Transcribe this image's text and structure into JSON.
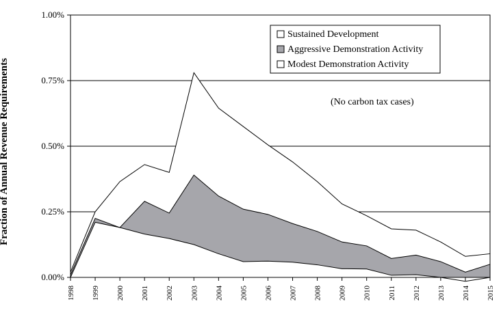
{
  "chart_data": {
    "type": "area",
    "ylabel": "Fraction of Annual Revenue Requirements",
    "annotation": "(No carbon tax cases)",
    "ylim": [
      0,
      1.0
    ],
    "yticks": [
      {
        "value": 0.0,
        "label": "0.00%"
      },
      {
        "value": 0.25,
        "label": "0.25%"
      },
      {
        "value": 0.5,
        "label": "0.50%"
      },
      {
        "value": 0.75,
        "label": "0.75%"
      },
      {
        "value": 1.0,
        "label": "1.00%"
      }
    ],
    "x": [
      "1998",
      "1999",
      "2000",
      "2001",
      "2002",
      "2003",
      "2004",
      "2005",
      "2006",
      "2007",
      "2008",
      "2009",
      "2010",
      "2011",
      "2012",
      "2013",
      "2014",
      "2015"
    ],
    "grid": "horizontal",
    "legend_position": "top-right",
    "series": [
      {
        "name": "Sustained Development",
        "fill": "#ffffff",
        "values": [
          0.0,
          0.21,
          0.19,
          0.165,
          0.148,
          0.125,
          0.09,
          0.06,
          0.062,
          0.058,
          0.048,
          0.033,
          0.032,
          0.008,
          0.01,
          0.0,
          -0.015,
          0.0
        ]
      },
      {
        "name": "Aggressive Demonstration Activity",
        "fill": "#a6a6ab",
        "values": [
          0.01,
          0.225,
          0.19,
          0.29,
          0.245,
          0.39,
          0.31,
          0.26,
          0.24,
          0.205,
          0.175,
          0.135,
          0.12,
          0.072,
          0.085,
          0.06,
          0.02,
          0.05
        ]
      },
      {
        "name": "Modest Demonstration Activity",
        "fill": "#ffffff",
        "values": [
          0.02,
          0.25,
          0.365,
          0.43,
          0.4,
          0.78,
          0.645,
          0.575,
          0.505,
          0.44,
          0.365,
          0.28,
          0.235,
          0.185,
          0.18,
          0.135,
          0.08,
          0.09
        ]
      }
    ]
  }
}
